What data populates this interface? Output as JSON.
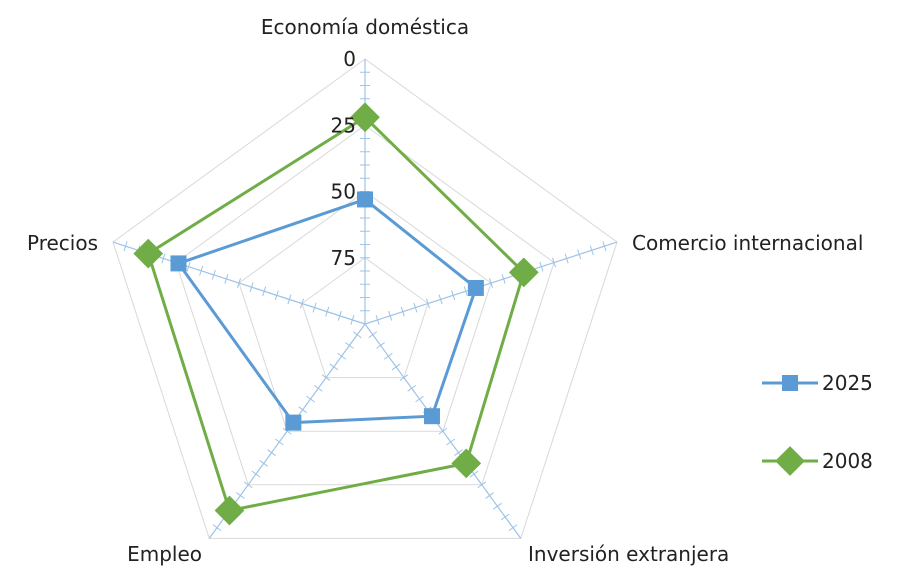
{
  "chart_data": {
    "type": "radar",
    "categories": [
      "Economía doméstica",
      "Comercio internacional",
      "Inversión extranjera",
      "Empleo",
      "Precios"
    ],
    "axis": {
      "min": 0,
      "max": 100,
      "reversed": true,
      "tick_labels": [
        "0",
        "25",
        "50",
        "75"
      ],
      "tick_values": [
        0,
        25,
        50,
        75
      ]
    },
    "series": [
      {
        "name": "2025",
        "values": [
          53,
          56,
          57,
          54,
          26
        ],
        "color": "#5B9BD5",
        "marker": "square"
      },
      {
        "name": "2008",
        "values": [
          22,
          37,
          35,
          13,
          14
        ],
        "color": "#70AD47",
        "marker": "diamond"
      }
    ],
    "grid": true,
    "legend": "right"
  }
}
